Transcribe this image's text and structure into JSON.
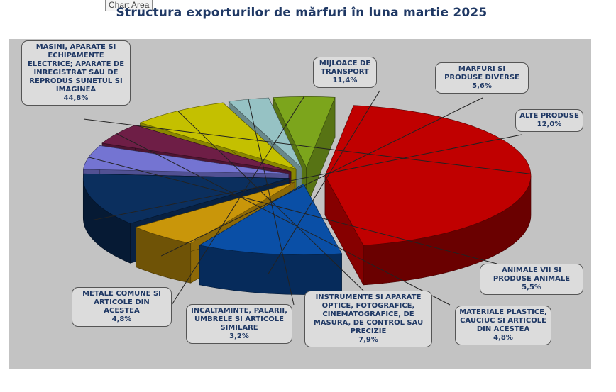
{
  "tooltip": "Chart Area",
  "chart_data": {
    "type": "pie",
    "title": "Structura exporturilor de mărfuri în luna martie 2025",
    "slices": [
      {
        "label": "MASINI, APARATE SI ECHIPAMENTE ELECTRICE; APARATE DE INREGISTRAT SAU DE REPRODUS SUNETUL SI IMAGINEA",
        "value": 44.8,
        "value_label": "44,8%",
        "color": "#c00000"
      },
      {
        "label": "MIJLOACE DE TRANSPORT",
        "value": 11.4,
        "value_label": "11,4%",
        "color": "#0a4fa6"
      },
      {
        "label": "MARFURI SI PRODUSE DIVERSE",
        "value": 5.6,
        "value_label": "5,6%",
        "color": "#c9960a"
      },
      {
        "label": "ALTE PRODUSE",
        "value": 12.0,
        "value_label": "12,0%",
        "color": "#0b2f5e"
      },
      {
        "label": "ANIMALE VII SI PRODUSE ANIMALE",
        "value": 5.5,
        "value_label": "5,5%",
        "color": "#7474d2"
      },
      {
        "label": "MATERIALE PLASTICE, CAUCIUC SI ARTICOLE DIN ACESTEA",
        "value": 4.8,
        "value_label": "4,8%",
        "color": "#6e1e46"
      },
      {
        "label": "INSTRUMENTE SI APARATE OPTICE, FOTOGRAFICE, CINEMATOGRAFICE, DE MASURA, DE CONTROL SAU PRECIZIE",
        "value": 7.9,
        "value_label": "7,9%",
        "color": "#c4c000"
      },
      {
        "label": "INCALTAMINTE, PALARII, UMBRELE SI ARTICOLE SIMILARE",
        "value": 3.2,
        "value_label": "3,2%",
        "color": "#96c2c4"
      },
      {
        "label": "METALE COMUNE SI ARTICOLE DIN ACESTEA",
        "value": 4.8,
        "value_label": "4,8%",
        "color": "#7ca51c"
      }
    ]
  }
}
